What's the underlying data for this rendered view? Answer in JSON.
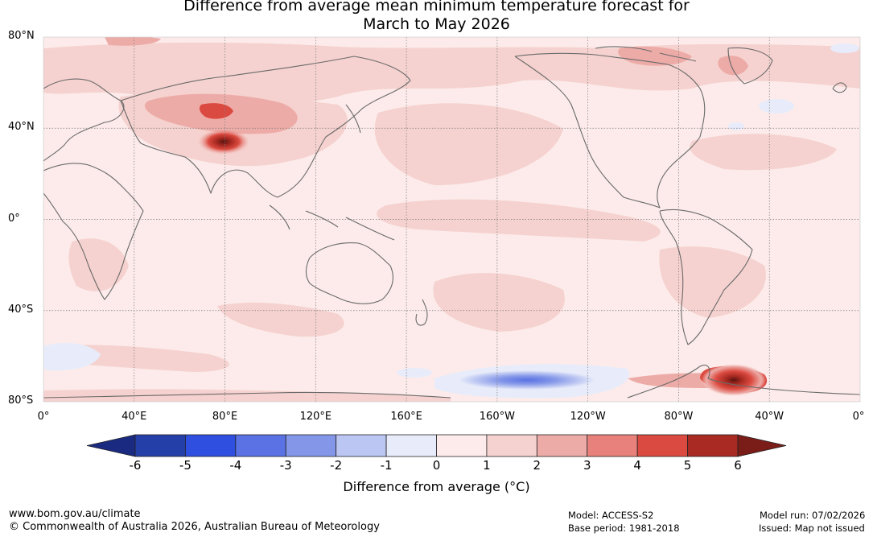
{
  "title": {
    "line1": "Difference from average mean minimum temperature forecast for",
    "line2": "March to May 2026"
  },
  "map": {
    "lat_labels": [
      "80°N",
      "40°N",
      "0°",
      "40°S",
      "80°S"
    ],
    "lon_labels": [
      "0°",
      "40°E",
      "80°E",
      "120°E",
      "160°E",
      "160°W",
      "120°W",
      "80°W",
      "40°W",
      "0°"
    ],
    "lat_values": [
      80,
      40,
      0,
      -40,
      -80
    ],
    "lon_values": [
      0,
      40,
      80,
      120,
      160,
      200,
      240,
      280,
      320,
      360
    ],
    "background_color": "#fcebea",
    "anomaly_regions": [
      {
        "name": "central-asia-warm",
        "lon": 85,
        "lat": 47,
        "value": 2
      },
      {
        "name": "tibet-warm-core",
        "lon": 80,
        "lat": 35,
        "value": 6
      },
      {
        "name": "alaska-arctic-warm",
        "lon": 230,
        "lat": 70,
        "value": 1.5
      },
      {
        "name": "greenland-warm",
        "lon": 305,
        "lat": 74,
        "value": 2
      },
      {
        "name": "north-atlantic-cool",
        "lon": 322,
        "lat": 48,
        "value": -0.5
      },
      {
        "name": "southern-ocean-cool",
        "lon": 205,
        "lat": -70,
        "value": -2
      },
      {
        "name": "weddell-warm",
        "lon": 300,
        "lat": -73,
        "value": 6
      }
    ]
  },
  "colorbar": {
    "ticks": [
      "-6",
      "-5",
      "-4",
      "-3",
      "-2",
      "-1",
      "0",
      "1",
      "2",
      "3",
      "4",
      "5",
      "6"
    ],
    "colors": [
      "#253fa8",
      "#2e4fe0",
      "#5a72e4",
      "#8396e8",
      "#bcc6f2",
      "#e8ecfa",
      "#fcebea",
      "#f5d2cf",
      "#edaba7",
      "#e8817b",
      "#db4a40",
      "#a82a22"
    ],
    "under_color": "#1a2a80",
    "over_color": "#7a1c18",
    "label": "Difference from average (°C)"
  },
  "footer": {
    "url": "www.bom.gov.au/climate",
    "copyright": "© Commonwealth of Australia 2026, Australian Bureau of Meteorology",
    "model": "Model: ACCESS-S2",
    "base_period": "Base period: 1981-2018",
    "model_run": "Model run: 07/02/2026",
    "issued": "Issued: Map not issued"
  }
}
